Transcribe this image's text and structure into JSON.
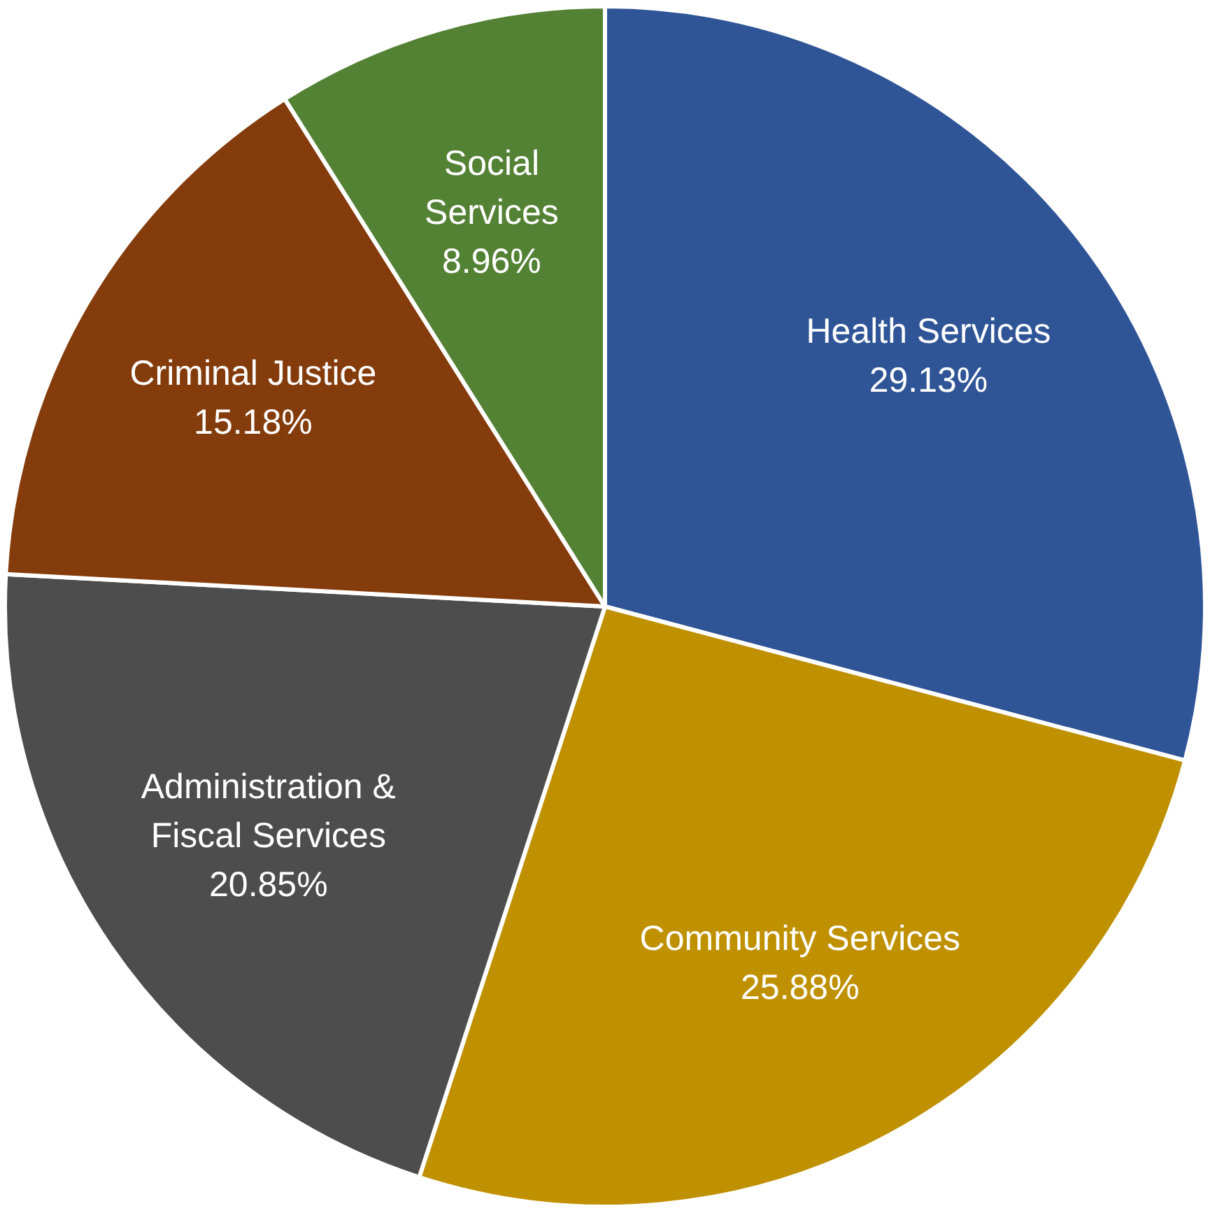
{
  "chart_data": {
    "type": "pie",
    "categories": [
      "Health Services",
      "Community Services",
      "Administration & Fiscal Services",
      "Criminal Justice",
      "Social Services"
    ],
    "values": [
      29.13,
      25.88,
      20.85,
      15.18,
      8.96
    ],
    "value_labels": [
      "29.13%",
      "25.88%",
      "20.85%",
      "15.18%",
      "8.96%"
    ],
    "colors": [
      "#2f5597",
      "#bf9000",
      "#4d4d4d",
      "#843c0c",
      "#548235"
    ],
    "legend": false
  }
}
